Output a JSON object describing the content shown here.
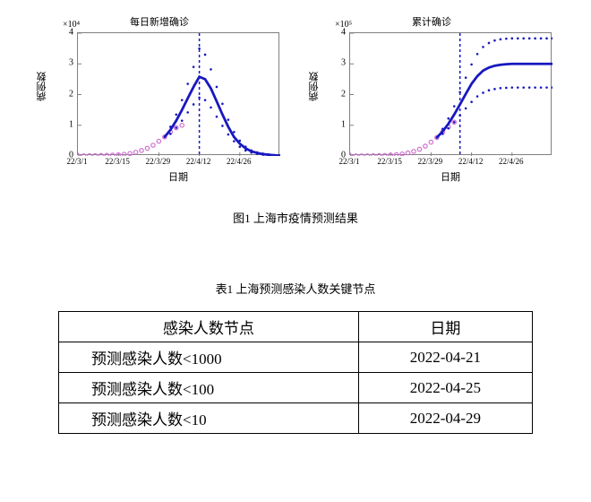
{
  "figure_caption": "图1 上海市疫情预测结果",
  "table_caption": "表1 上海预测感染人数关键节点",
  "charts": {
    "left": {
      "title": "每日新增确诊",
      "ylabel": "病例数",
      "xlabel": "日期",
      "y_exp": "×10⁴",
      "ylim": [
        0,
        4
      ],
      "yticks": [
        0,
        1,
        2,
        3,
        4
      ],
      "xticks": [
        "22/3/1",
        "22/3/15",
        "22/3/29",
        "22/4/12",
        "22/4/26"
      ],
      "xlim": [
        0,
        70
      ],
      "vline_x": 42,
      "series": {
        "observed": {
          "color": "#d070d0",
          "points": [
            [
              0,
              0.005
            ],
            [
              2,
              0.006
            ],
            [
              4,
              0.008
            ],
            [
              6,
              0.01
            ],
            [
              8,
              0.015
            ],
            [
              10,
              0.02
            ],
            [
              12,
              0.028
            ],
            [
              14,
              0.04
            ],
            [
              16,
              0.055
            ],
            [
              18,
              0.08
            ],
            [
              20,
              0.12
            ],
            [
              22,
              0.18
            ],
            [
              24,
              0.25
            ],
            [
              26,
              0.35
            ],
            [
              28,
              0.48
            ],
            [
              30,
              0.62
            ],
            [
              32,
              0.78
            ],
            [
              34,
              0.92
            ],
            [
              36,
              1.0
            ]
          ]
        },
        "predicted": {
          "color": "#1818c0",
          "points": [
            [
              30,
              0.62
            ],
            [
              32,
              0.85
            ],
            [
              34,
              1.15
            ],
            [
              36,
              1.5
            ],
            [
              38,
              1.88
            ],
            [
              40,
              2.25
            ],
            [
              42,
              2.58
            ],
            [
              44,
              2.5
            ],
            [
              46,
              2.2
            ],
            [
              48,
              1.78
            ],
            [
              50,
              1.35
            ],
            [
              52,
              0.95
            ],
            [
              54,
              0.62
            ],
            [
              56,
              0.4
            ],
            [
              58,
              0.25
            ],
            [
              60,
              0.15
            ],
            [
              62,
              0.1
            ],
            [
              64,
              0.06
            ],
            [
              66,
              0.04
            ],
            [
              68,
              0.02
            ],
            [
              70,
              0.01
            ]
          ]
        },
        "upper": {
          "color": "#1818c0",
          "points": [
            [
              30,
              0.62
            ],
            [
              32,
              0.95
            ],
            [
              34,
              1.35
            ],
            [
              36,
              1.82
            ],
            [
              38,
              2.35
            ],
            [
              40,
              2.9
            ],
            [
              42,
              3.5
            ],
            [
              44,
              3.3
            ],
            [
              46,
              2.82
            ],
            [
              48,
              2.25
            ],
            [
              50,
              1.7
            ],
            [
              52,
              1.18
            ],
            [
              54,
              0.78
            ],
            [
              56,
              0.5
            ],
            [
              58,
              0.3
            ],
            [
              60,
              0.18
            ],
            [
              62,
              0.12
            ],
            [
              64,
              0.08
            ],
            [
              66,
              0.05
            ],
            [
              68,
              0.03
            ],
            [
              70,
              0.02
            ]
          ]
        },
        "lower": {
          "color": "#1818c0",
          "points": [
            [
              30,
              0.62
            ],
            [
              32,
              0.72
            ],
            [
              34,
              0.92
            ],
            [
              36,
              1.15
            ],
            [
              38,
              1.42
            ],
            [
              40,
              1.68
            ],
            [
              42,
              1.9
            ],
            [
              44,
              1.82
            ],
            [
              46,
              1.58
            ],
            [
              48,
              1.28
            ],
            [
              50,
              0.98
            ],
            [
              52,
              0.7
            ],
            [
              54,
              0.48
            ],
            [
              56,
              0.3
            ],
            [
              58,
              0.18
            ],
            [
              60,
              0.11
            ],
            [
              62,
              0.07
            ],
            [
              64,
              0.04
            ],
            [
              66,
              0.025
            ],
            [
              68,
              0.015
            ],
            [
              70,
              0.01
            ]
          ]
        }
      }
    },
    "right": {
      "title": "累计确诊",
      "ylabel": "病例数",
      "xlabel": "日期",
      "y_exp": "×10⁵",
      "ylim": [
        0,
        4
      ],
      "yticks": [
        0,
        1,
        2,
        3,
        4
      ],
      "xticks": [
        "22/3/1",
        "22/3/15",
        "22/3/29",
        "22/4/12",
        "22/4/26"
      ],
      "xlim": [
        0,
        70
      ],
      "vline_x": 38,
      "series": {
        "observed": {
          "color": "#d070d0",
          "points": [
            [
              0,
              0.001
            ],
            [
              2,
              0.002
            ],
            [
              4,
              0.003
            ],
            [
              6,
              0.005
            ],
            [
              8,
              0.008
            ],
            [
              10,
              0.012
            ],
            [
              12,
              0.018
            ],
            [
              14,
              0.028
            ],
            [
              16,
              0.042
            ],
            [
              18,
              0.065
            ],
            [
              20,
              0.1
            ],
            [
              22,
              0.15
            ],
            [
              24,
              0.22
            ],
            [
              26,
              0.32
            ],
            [
              28,
              0.45
            ],
            [
              30,
              0.6
            ],
            [
              32,
              0.78
            ],
            [
              34,
              0.95
            ],
            [
              36,
              1.1
            ]
          ]
        },
        "predicted": {
          "color": "#1818c0",
          "points": [
            [
              30,
              0.6
            ],
            [
              32,
              0.8
            ],
            [
              34,
              1.05
            ],
            [
              36,
              1.35
            ],
            [
              38,
              1.68
            ],
            [
              40,
              2.02
            ],
            [
              42,
              2.35
            ],
            [
              44,
              2.6
            ],
            [
              46,
              2.78
            ],
            [
              48,
              2.88
            ],
            [
              50,
              2.94
            ],
            [
              52,
              2.97
            ],
            [
              54,
              2.99
            ],
            [
              56,
              3.0
            ],
            [
              58,
              3.0
            ],
            [
              60,
              3.0
            ],
            [
              62,
              3.0
            ],
            [
              64,
              3.0
            ],
            [
              66,
              3.0
            ],
            [
              68,
              3.0
            ],
            [
              70,
              3.0
            ]
          ]
        },
        "upper": {
          "color": "#1818c0",
          "points": [
            [
              30,
              0.6
            ],
            [
              32,
              0.88
            ],
            [
              34,
              1.22
            ],
            [
              36,
              1.62
            ],
            [
              38,
              2.08
            ],
            [
              40,
              2.55
            ],
            [
              42,
              2.98
            ],
            [
              44,
              3.32
            ],
            [
              46,
              3.55
            ],
            [
              48,
              3.68
            ],
            [
              50,
              3.76
            ],
            [
              52,
              3.8
            ],
            [
              54,
              3.82
            ],
            [
              56,
              3.83
            ],
            [
              58,
              3.83
            ],
            [
              60,
              3.83
            ],
            [
              62,
              3.83
            ],
            [
              64,
              3.83
            ],
            [
              66,
              3.83
            ],
            [
              68,
              3.83
            ],
            [
              70,
              3.83
            ]
          ]
        },
        "lower": {
          "color": "#1818c0",
          "points": [
            [
              30,
              0.6
            ],
            [
              32,
              0.72
            ],
            [
              34,
              0.9
            ],
            [
              36,
              1.1
            ],
            [
              38,
              1.32
            ],
            [
              40,
              1.55
            ],
            [
              42,
              1.76
            ],
            [
              44,
              1.94
            ],
            [
              46,
              2.06
            ],
            [
              48,
              2.14
            ],
            [
              50,
              2.18
            ],
            [
              52,
              2.21
            ],
            [
              54,
              2.22
            ],
            [
              56,
              2.23
            ],
            [
              58,
              2.23
            ],
            [
              60,
              2.23
            ],
            [
              62,
              2.23
            ],
            [
              64,
              2.23
            ],
            [
              66,
              2.23
            ],
            [
              68,
              2.23
            ],
            [
              70,
              2.23
            ]
          ]
        }
      }
    }
  },
  "table": {
    "headers": [
      "感染人数节点",
      "日期"
    ],
    "rows": [
      [
        "预测感染人数<1000",
        "2022-04-21"
      ],
      [
        "预测感染人数<100",
        "2022-04-25"
      ],
      [
        "预测感染人数<10",
        "2022-04-29"
      ]
    ]
  },
  "colors": {
    "axis": "#808080",
    "grid": "#ffffff",
    "observed": "#d070d0",
    "predicted": "#1818c0"
  }
}
